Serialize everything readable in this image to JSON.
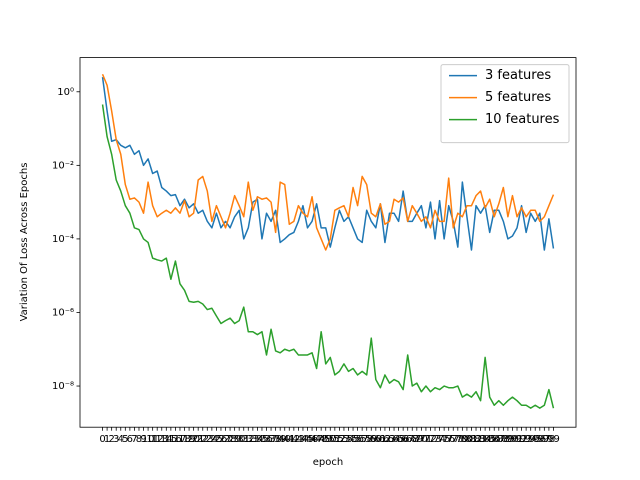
{
  "chart_data": {
    "type": "line",
    "x_label": "epoch",
    "y_label": "Variation Of Loss Across Epochs",
    "x": [
      0,
      1,
      2,
      3,
      4,
      5,
      6,
      7,
      8,
      9,
      10,
      11,
      12,
      13,
      14,
      15,
      16,
      17,
      18,
      19,
      20,
      21,
      22,
      23,
      24,
      25,
      26,
      27,
      28,
      29,
      30,
      31,
      32,
      33,
      34,
      35,
      36,
      37,
      38,
      39,
      40,
      41,
      42,
      43,
      44,
      45,
      46,
      47,
      48,
      49,
      50,
      51,
      52,
      53,
      54,
      55,
      56,
      57,
      58,
      59,
      60,
      61,
      62,
      63,
      64,
      65,
      66,
      67,
      68,
      69,
      70,
      71,
      72,
      73,
      74,
      75,
      76,
      77,
      78,
      79,
      80,
      81,
      82,
      83,
      84,
      85,
      86,
      87,
      88,
      89,
      90,
      91,
      92,
      93,
      94,
      95,
      96,
      97,
      98,
      99
    ],
    "xticks": [
      0,
      1,
      2,
      3,
      4,
      5,
      6,
      7,
      8,
      9,
      10,
      11,
      12,
      13,
      14,
      15,
      16,
      17,
      18,
      19,
      20,
      21,
      22,
      23,
      24,
      25,
      26,
      27,
      28,
      29,
      30,
      31,
      32,
      33,
      34,
      35,
      36,
      37,
      38,
      39,
      40,
      41,
      42,
      43,
      44,
      45,
      46,
      47,
      48,
      49,
      50,
      51,
      52,
      53,
      54,
      55,
      56,
      57,
      58,
      59,
      60,
      61,
      62,
      63,
      64,
      65,
      66,
      67,
      68,
      69,
      70,
      71,
      72,
      73,
      74,
      75,
      76,
      77,
      78,
      79,
      80,
      81,
      82,
      83,
      84,
      85,
      86,
      87,
      88,
      89,
      90,
      91,
      92,
      93,
      94,
      95,
      96,
      97,
      98,
      99
    ],
    "xlim": [
      -4.95,
      103.95
    ],
    "ylim": [
      7.6e-10,
      8.5
    ],
    "log_y": true,
    "yticks": [
      {
        "value": 1e-08,
        "label": "10⁻⁸"
      },
      {
        "value": 1e-06,
        "label": "10⁻⁶"
      },
      {
        "value": 0.0001,
        "label": "10⁻⁴"
      },
      {
        "value": 0.01,
        "label": "10⁻²"
      },
      {
        "value": 1,
        "label": "10⁰"
      }
    ],
    "legend": "upper right",
    "series": [
      {
        "name": "3 features",
        "color": "#1f77b4",
        "values": [
          2.5,
          0.3,
          0.045,
          0.05,
          0.035,
          0.03,
          0.035,
          0.02,
          0.025,
          0.01,
          0.015,
          0.006,
          0.007,
          0.0025,
          0.002,
          0.0015,
          0.0016,
          0.0008,
          0.0012,
          0.0007,
          0.0009,
          0.0005,
          0.0006,
          0.0003,
          0.0002,
          0.0005,
          0.0002,
          0.0003,
          0.0002,
          0.0004,
          0.0006,
          0.0001,
          0.0002,
          0.001,
          0.0012,
          0.0001,
          0.0005,
          0.0003,
          0.0006,
          8e-05,
          0.0001,
          0.00013,
          0.00015,
          0.0003,
          0.0008,
          0.0002,
          0.0003,
          0.0009,
          0.0002,
          0.0002,
          6e-05,
          0.0002,
          0.0006,
          0.0003,
          0.0004,
          0.0002,
          0.0001,
          8e-05,
          0.0006,
          0.0003,
          0.0002,
          0.0009,
          8e-05,
          0.0005,
          0.0005,
          0.0003,
          0.002,
          0.0003,
          0.0003,
          0.0005,
          0.0008,
          0.0002,
          0.001,
          0.0001,
          0.0011,
          0.0001,
          0.0008,
          0.0003,
          6e-05,
          0.0035,
          0.0004,
          5e-05,
          0.0008,
          0.0005,
          0.0008,
          0.00015,
          0.0006,
          0.0006,
          0.0003,
          0.0001,
          0.00012,
          0.0002,
          0.0008,
          0.00015,
          0.0005,
          0.0003,
          0.0005,
          5e-05,
          0.00035,
          5.5e-05
        ]
      },
      {
        "name": "5 features",
        "color": "#ff7f0e",
        "values": [
          3,
          1.5,
          0.3,
          0.05,
          0.02,
          0.003,
          0.0012,
          0.0013,
          0.001,
          0.0005,
          0.0035,
          0.0008,
          0.0004,
          0.0005,
          0.0006,
          0.0005,
          0.0007,
          0.0005,
          0.0011,
          0.0004,
          0.0005,
          0.004,
          0.005,
          0.002,
          0.0003,
          0.0008,
          0.0004,
          0.0002,
          0.0005,
          0.0015,
          0.0008,
          0.0004,
          0.0035,
          0.0006,
          0.0014,
          0.0012,
          0.0013,
          0.001,
          0.00015,
          0.0035,
          0.003,
          0.00025,
          0.0003,
          0.0008,
          0.0005,
          0.0004,
          0.0014,
          0.0002,
          0.0001,
          5e-05,
          0.0001,
          0.0006,
          0.0007,
          0.0008,
          0.0004,
          0.0025,
          0.0008,
          0.005,
          0.003,
          0.0005,
          0.0004,
          0.0009,
          0.00025,
          0.0003,
          0.0012,
          0.001,
          0.0013,
          0.0003,
          0.0008,
          0.0005,
          0.0003,
          0.0004,
          0.0002,
          0.0006,
          0.0003,
          0.0003,
          0.0045,
          0.0002,
          0.0005,
          0.0004,
          0.0008,
          0.0008,
          0.0015,
          0.002,
          0.0007,
          0.0012,
          0.0004,
          0.0009,
          0.0025,
          0.0004,
          0.0015,
          0.0004,
          0.0007,
          0.0004,
          0.0006,
          0.0006,
          0.0003,
          0.0004,
          0.0008,
          0.0016
        ]
      },
      {
        "name": "10 features",
        "color": "#2ca02c",
        "values": [
          0.45,
          0.06,
          0.02,
          0.004,
          0.002,
          0.0008,
          0.0005,
          0.0002,
          0.00018,
          0.0001,
          8e-05,
          3e-05,
          2.7e-05,
          2.5e-05,
          3e-05,
          8e-06,
          2.5e-05,
          6e-06,
          4e-06,
          2e-06,
          1.9e-06,
          2e-06,
          1.7e-06,
          1.2e-06,
          1.3e-06,
          8e-07,
          5e-07,
          6e-07,
          7e-07,
          5e-07,
          6e-07,
          1.4e-06,
          3e-07,
          3e-07,
          2.5e-07,
          3e-07,
          7e-08,
          3.5e-07,
          9e-08,
          8e-08,
          1e-07,
          9e-08,
          1e-07,
          7e-08,
          7e-08,
          7e-08,
          8e-08,
          3e-08,
          3e-07,
          4e-08,
          6e-08,
          2e-08,
          2.5e-08,
          4e-08,
          2.5e-08,
          3e-08,
          2e-08,
          2.5e-08,
          2e-08,
          2e-07,
          1.5e-08,
          9e-09,
          2e-08,
          1.2e-08,
          1.5e-08,
          1.3e-08,
          8e-09,
          7e-08,
          1e-08,
          1.2e-08,
          7e-09,
          1e-08,
          7e-09,
          9e-09,
          8e-09,
          1e-08,
          9e-09,
          9e-09,
          1e-08,
          5e-09,
          6e-09,
          5e-09,
          7e-09,
          4e-09,
          6e-08,
          5e-09,
          3e-09,
          4e-09,
          3e-09,
          4e-09,
          5e-09,
          4e-09,
          3e-09,
          3e-09,
          2.5e-09,
          3e-09,
          2.5e-09,
          3e-09,
          8e-09,
          2.5e-09
        ]
      }
    ]
  }
}
